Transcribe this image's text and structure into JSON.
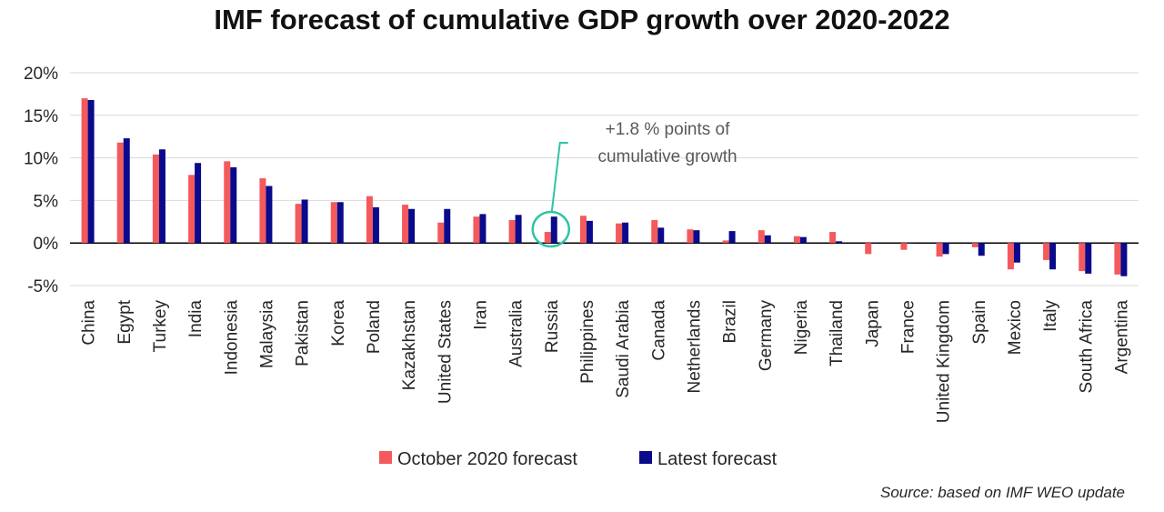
{
  "chart_data": {
    "type": "bar",
    "title": "IMF forecast of cumulative GDP growth over 2020-2022",
    "categories": [
      "China",
      "Egypt",
      "Turkey",
      "India",
      "Indonesia",
      "Malaysia",
      "Pakistan",
      "Korea",
      "Poland",
      "Kazakhstan",
      "United States",
      "Iran",
      "Australia",
      "Russia",
      "Philippines",
      "Saudi Arabia",
      "Canada",
      "Netherlands",
      "Brazil",
      "Germany",
      "Nigeria",
      "Thailand",
      "Japan",
      "France",
      "United Kingdom",
      "Spain",
      "Mexico",
      "Italy",
      "South Africa",
      "Argentina"
    ],
    "series": [
      {
        "name": "October 2020 forecast",
        "color": "#F4595B",
        "values": [
          17.0,
          11.8,
          10.4,
          8.0,
          9.6,
          7.6,
          4.6,
          4.8,
          5.5,
          4.5,
          2.4,
          3.1,
          2.7,
          1.3,
          3.2,
          2.3,
          2.7,
          1.6,
          0.3,
          1.5,
          0.8,
          1.3,
          -1.3,
          -0.8,
          -1.6,
          -0.5,
          -3.1,
          -2.0,
          -3.3,
          -3.7
        ]
      },
      {
        "name": "Latest forecast",
        "color": "#0A0A8C",
        "values": [
          16.8,
          12.3,
          11.0,
          9.4,
          8.9,
          6.7,
          5.1,
          4.8,
          4.2,
          4.0,
          4.0,
          3.4,
          3.3,
          3.1,
          2.6,
          2.4,
          1.8,
          1.5,
          1.4,
          0.9,
          0.7,
          0.2,
          0.0,
          0.0,
          -1.3,
          -1.5,
          -2.3,
          -3.1,
          -3.6,
          -3.9
        ]
      }
    ],
    "yticks": [
      "20%",
      "15%",
      "10%",
      "5%",
      "0%",
      "-5%"
    ],
    "ylim": [
      -5,
      20
    ],
    "grid": true,
    "legend_position": "bottom",
    "annotation": {
      "lines": [
        "+1.8 % points of",
        "cumulative growth"
      ],
      "target": "Russia"
    },
    "source": "Source: based on IMF WEO update"
  }
}
